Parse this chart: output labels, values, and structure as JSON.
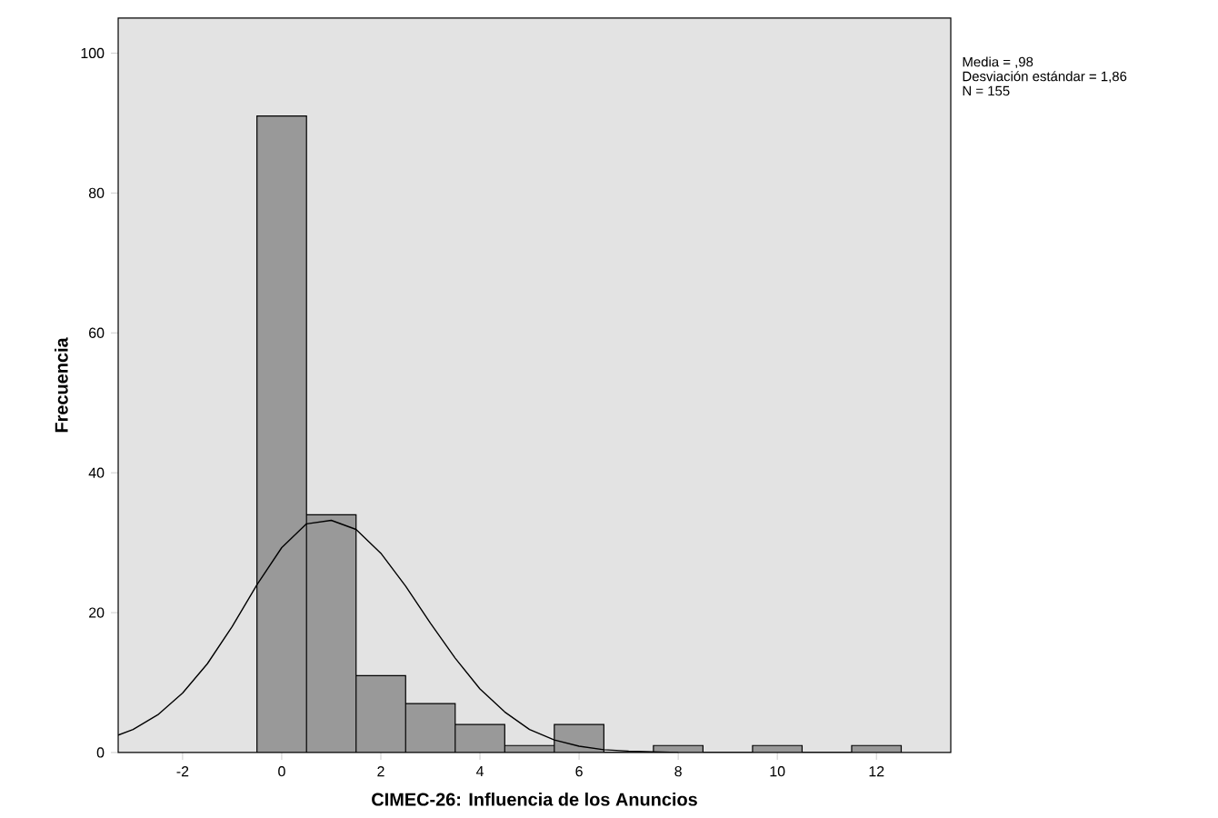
{
  "chart_data": {
    "type": "histogram",
    "xlabel": "CIMEC-26: Influencia de los Anuncios",
    "ylabel": "Frecuencia",
    "bins": [
      -0.5,
      0.5,
      1.5,
      2.5,
      3.5,
      4.5,
      5.5,
      6.5,
      7.5,
      8.5,
      9.5,
      10.5,
      11.5,
      12.5
    ],
    "values": [
      91,
      34,
      11,
      7,
      4,
      1,
      4,
      0,
      1,
      0,
      1,
      0,
      1
    ],
    "color": "#999999",
    "series": [
      {
        "type": "line",
        "color": "#000000",
        "x": [
          -3.3,
          -3,
          -2.5,
          -2,
          -1.5,
          -1,
          -0.5,
          0,
          0.5,
          1,
          1.5,
          2,
          2.5,
          3,
          3.5,
          4,
          4.5,
          5,
          5.5,
          6,
          6.5,
          7,
          7.5,
          8
        ],
        "values": [
          2.5,
          3.3,
          5.4,
          8.5,
          12.7,
          18,
          24,
          29.3,
          32.7,
          33.2,
          31.9,
          28.5,
          23.8,
          18.5,
          13.5,
          9.1,
          5.8,
          3.3,
          1.8,
          0.9,
          0.4,
          0.2,
          0.1,
          0
        ]
      }
    ],
    "xlim": [
      -3.3,
      13.5
    ],
    "ylim": [
      0,
      105
    ],
    "xticks": [
      -2,
      0,
      2,
      4,
      6,
      8,
      10,
      12
    ],
    "yticks": [
      0,
      20,
      40,
      60,
      80,
      100
    ],
    "annotations": [
      "Media = ,98",
      "Desviación estándar = 1,86",
      "N = 155"
    ]
  }
}
